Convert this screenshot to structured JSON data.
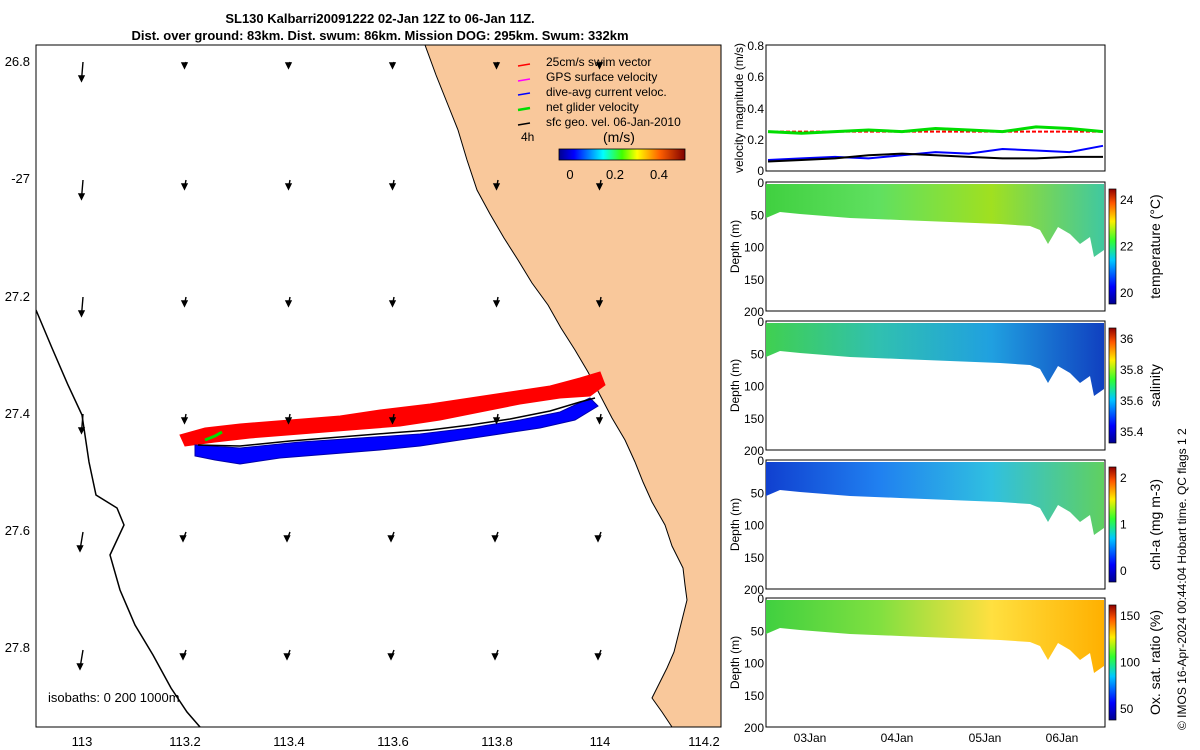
{
  "title": {
    "line1": "SL130 Kalbarri20091222 02-Jan 12Z to 06-Jan 11Z.",
    "line2": "Dist. over ground: 83km. Dist. swum: 86km. Mission DOG: 295km. Swum: 332km"
  },
  "colors": {
    "land": "#f9c89b",
    "swim": "#ff0000",
    "gps": "#ff00ff",
    "dac": "#0000ff",
    "net": "#00dd00",
    "geo": "#000000"
  },
  "map": {
    "legend": [
      {
        "label": "25cm/s swim vector",
        "color_key": "swim"
      },
      {
        "label": "GPS surface velocity",
        "color_key": "gps"
      },
      {
        "label": "dive-avg current veloc.",
        "color_key": "dac"
      },
      {
        "label": "net glider velocity",
        "color_key": "net"
      },
      {
        "label": "sfc geo. vel. 06-Jan-2010",
        "color_key": "geo"
      }
    ],
    "interval_label": "4h",
    "speed_unit": "(m/s)",
    "speed_ticks": [
      "0",
      "0.2",
      "0.4"
    ],
    "isobath_label": "isobaths: 0   200  1000m",
    "lon_ticks": [
      "113",
      "113.2",
      "113.4",
      "113.6",
      "113.8",
      "114",
      "114.2"
    ],
    "lat_ticks": [
      "26.8",
      "-27",
      "27.2",
      "27.4",
      "27.6",
      "27.8"
    ]
  },
  "chart_data": [
    {
      "type": "line",
      "title": "",
      "ylabel": "velocity magnitude (m/s)",
      "ylim": [
        0,
        0.8
      ],
      "yticks": [
        "0",
        "0.2",
        "0.4",
        "0.6",
        "0.8"
      ],
      "x": [
        0,
        0.1,
        0.2,
        0.3,
        0.4,
        0.5,
        0.6,
        0.7,
        0.8,
        0.9,
        1.0
      ],
      "series": [
        {
          "name": "swim",
          "color_key": "swim",
          "values": [
            0.25,
            0.25,
            0.25,
            0.25,
            0.25,
            0.25,
            0.25,
            0.25,
            0.25,
            0.25,
            0.25
          ]
        },
        {
          "name": "net glider",
          "color_key": "net",
          "values": [
            0.25,
            0.24,
            0.25,
            0.26,
            0.25,
            0.27,
            0.26,
            0.25,
            0.28,
            0.27,
            0.25
          ]
        },
        {
          "name": "dive-avg current",
          "color_key": "dac",
          "values": [
            0.07,
            0.08,
            0.09,
            0.08,
            0.1,
            0.12,
            0.11,
            0.14,
            0.13,
            0.12,
            0.16
          ]
        },
        {
          "name": "sfc geo",
          "color_key": "geo",
          "values": [
            0.06,
            0.07,
            0.08,
            0.1,
            0.11,
            0.1,
            0.09,
            0.08,
            0.08,
            0.09,
            0.09
          ]
        }
      ]
    },
    {
      "type": "heatmap",
      "ylabel": "Depth (m)",
      "ylim": [
        0,
        200
      ],
      "yticks": [
        "0",
        "50",
        "100",
        "150",
        "200"
      ],
      "variable": "temperature (°C)",
      "cticks": [
        "20",
        "22",
        "24"
      ]
    },
    {
      "type": "heatmap",
      "ylabel": "Depth (m)",
      "ylim": [
        0,
        200
      ],
      "yticks": [
        "0",
        "50",
        "100",
        "150",
        "200"
      ],
      "variable": "salinity",
      "cticks": [
        "35.4",
        "35.6",
        "35.8",
        "36"
      ]
    },
    {
      "type": "heatmap",
      "ylabel": "Depth (m)",
      "ylim": [
        0,
        200
      ],
      "yticks": [
        "0",
        "50",
        "100",
        "150",
        "200"
      ],
      "variable": "chl-a (mg m-3)",
      "cticks": [
        "0",
        "1",
        "2"
      ]
    },
    {
      "type": "heatmap",
      "ylabel": "Depth (m)",
      "ylim": [
        0,
        200
      ],
      "yticks": [
        "0",
        "50",
        "100",
        "150",
        "200"
      ],
      "variable": "Ox. sat. ratio (%)",
      "cticks": [
        "50",
        "100",
        "150"
      ]
    }
  ],
  "time_ticks": [
    "03Jan",
    "04Jan",
    "05Jan",
    "06Jan"
  ],
  "footer": "© IMOS 16-Apr-2024 00:44:04 Hobart time. QC flags 1  2"
}
